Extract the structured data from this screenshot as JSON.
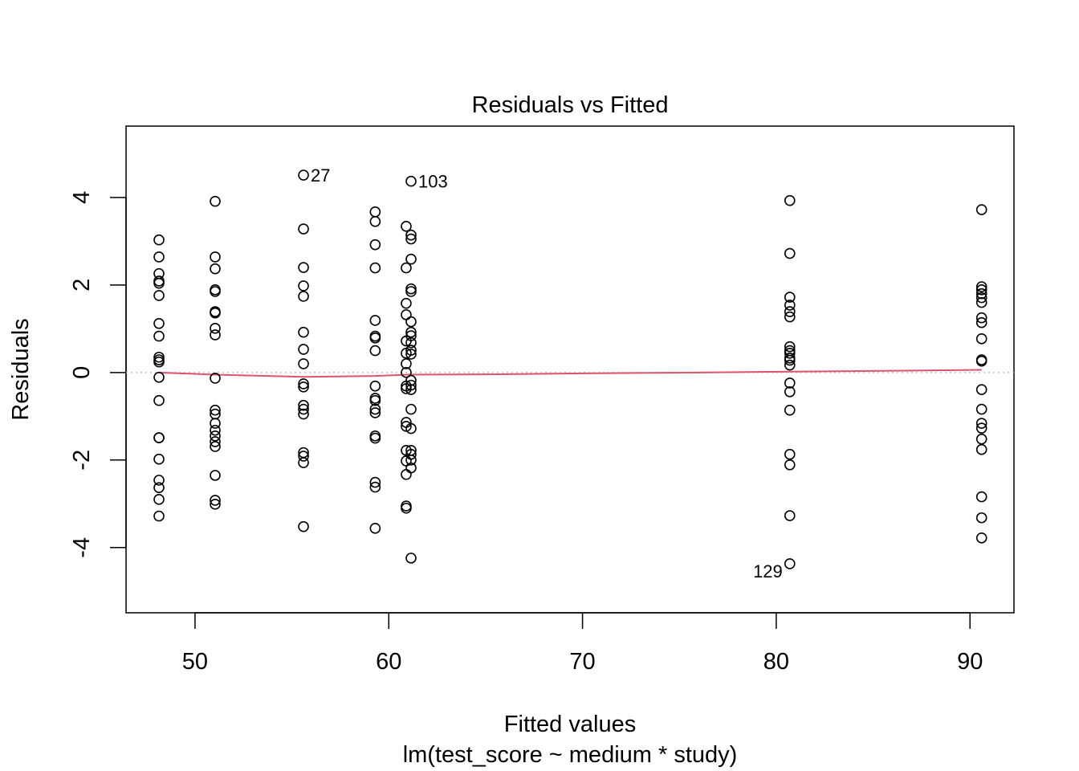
{
  "chart_data": {
    "type": "scatter",
    "title": "Residuals vs Fitted",
    "xlabel": "Fitted values",
    "subtitle": "lm(test_score ~ medium * study)",
    "ylabel": "Residuals",
    "xlim": [
      46.44,
      92.27
    ],
    "ylim": [
      -5.49,
      5.63
    ],
    "xticks": [
      50,
      60,
      70,
      80,
      90
    ],
    "yticks": [
      -4,
      -2,
      0,
      2,
      4
    ],
    "grid": false,
    "reference_line": 0,
    "colors": {
      "points": "#000000",
      "smoother": "#DF536B",
      "reference": "#BEBEBE"
    },
    "groups": [
      {
        "x": 48.14,
        "residuals": [
          3.03,
          2.64,
          2.26,
          2.09,
          2.04,
          1.76,
          1.12,
          0.83,
          0.35,
          0.29,
          0.24,
          -0.11,
          -0.64,
          -1.49,
          -1.49,
          -1.98,
          -2.46,
          -2.63,
          -2.9,
          -3.28
        ]
      },
      {
        "x": 51.04,
        "residuals": [
          3.91,
          2.64,
          2.37,
          1.89,
          1.85,
          1.39,
          1.36,
          1.01,
          0.86,
          -0.13,
          -0.86,
          -0.95,
          -1.16,
          -1.32,
          -1.45,
          -1.58,
          -1.69,
          -2.35,
          -2.92,
          -3.01
        ]
      },
      {
        "x": 55.6,
        "residuals": [
          4.51,
          3.28,
          2.4,
          1.98,
          1.74,
          0.92,
          0.53,
          0.2,
          -0.26,
          -0.33,
          -0.75,
          -0.84,
          -0.95,
          -1.83,
          -1.91,
          -2.06,
          -3.52
        ]
      },
      {
        "x": 59.3,
        "residuals": [
          3.67,
          3.45,
          2.92,
          2.39,
          1.19,
          0.83,
          0.79,
          0.5,
          -0.31,
          -0.59,
          -0.64,
          -0.84,
          -0.92,
          -1.45,
          -1.5,
          -2.51,
          -2.62,
          -3.56
        ]
      },
      {
        "x": 60.9,
        "residuals": [
          3.34,
          2.39,
          1.58,
          1.32,
          0.72,
          0.44,
          0.2,
          0.0,
          -0.31,
          -0.37,
          -1.14,
          -1.23,
          -1.78,
          -2.02,
          -2.33,
          -3.05,
          -3.1
        ]
      },
      {
        "x": 61.15,
        "residuals": [
          4.37,
          3.14,
          3.05,
          2.59,
          1.91,
          1.85,
          1.16,
          0.92,
          0.84,
          0.68,
          0.51,
          0.42,
          -0.18,
          -0.29,
          -0.39,
          -0.84,
          -1.28,
          -1.78,
          -1.87,
          -2.0,
          -2.18,
          -4.24
        ]
      },
      {
        "x": 80.7,
        "residuals": [
          3.93,
          2.72,
          1.72,
          1.54,
          1.39,
          1.27,
          0.59,
          0.5,
          0.44,
          0.33,
          0.28,
          0.17,
          -0.24,
          -0.44,
          -0.86,
          -1.87,
          -2.11,
          -3.27,
          -4.37
        ]
      },
      {
        "x": 90.6,
        "residuals": [
          3.72,
          1.96,
          1.89,
          1.8,
          1.71,
          1.6,
          1.25,
          1.14,
          0.77,
          0.29,
          0.26,
          -0.39,
          -0.84,
          -1.16,
          -1.27,
          -1.52,
          -1.76,
          -2.84,
          -3.32,
          -3.78
        ]
      }
    ],
    "smoother": {
      "x": [
        48.14,
        51.04,
        55.6,
        59.3,
        61.0,
        66,
        70,
        76,
        80.7,
        86,
        90.6
      ],
      "y": [
        0.0,
        -0.05,
        -0.1,
        -0.08,
        -0.05,
        -0.04,
        -0.02,
        0.0,
        0.02,
        0.04,
        0.06
      ]
    },
    "annotations": [
      {
        "text": "27",
        "x": 55.6,
        "y": 4.51,
        "side": "right"
      },
      {
        "text": "103",
        "x": 61.15,
        "y": 4.37,
        "side": "right"
      },
      {
        "text": "129",
        "x": 80.7,
        "y": -4.37,
        "side": "left"
      }
    ]
  }
}
